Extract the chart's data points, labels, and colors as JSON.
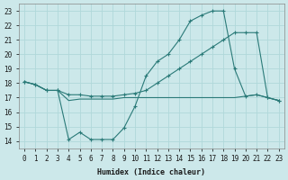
{
  "xlabel": "Humidex (Indice chaleur)",
  "background_color": "#cce8ea",
  "line_color": "#2a7a78",
  "grid_color": "#b0d8da",
  "xlim": [
    -0.5,
    23.5
  ],
  "ylim": [
    13.5,
    23.5
  ],
  "xticks": [
    0,
    1,
    2,
    3,
    4,
    5,
    6,
    7,
    8,
    9,
    10,
    11,
    12,
    13,
    14,
    15,
    16,
    17,
    18,
    19,
    20,
    21,
    22,
    23
  ],
  "yticks": [
    14,
    15,
    16,
    17,
    18,
    19,
    20,
    21,
    22,
    23
  ],
  "line1_y": [
    18.1,
    17.9,
    17.5,
    17.5,
    14.1,
    14.6,
    14.1,
    14.1,
    14.1,
    14.9,
    16.4,
    18.5,
    19.5,
    20.0,
    21.0,
    22.3,
    22.7,
    23.0,
    23.0,
    19.0,
    17.1,
    17.2,
    17.0,
    16.8
  ],
  "line2_y": [
    18.1,
    17.9,
    17.5,
    17.5,
    17.2,
    17.2,
    17.1,
    17.1,
    17.1,
    17.2,
    17.3,
    17.5,
    18.0,
    18.5,
    19.0,
    19.5,
    20.0,
    20.5,
    21.0,
    21.5,
    21.5,
    21.5,
    17.0,
    16.8
  ],
  "line3_y": [
    18.1,
    17.9,
    17.5,
    17.5,
    16.8,
    16.9,
    16.9,
    16.9,
    16.9,
    17.0,
    17.0,
    17.0,
    17.0,
    17.0,
    17.0,
    17.0,
    17.0,
    17.0,
    17.0,
    17.0,
    17.1,
    17.2,
    17.0,
    16.8
  ]
}
